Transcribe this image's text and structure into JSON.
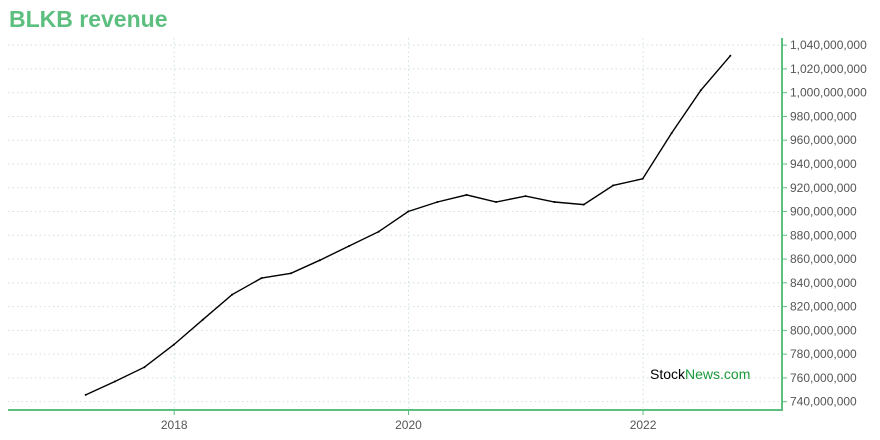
{
  "title": "BLKB revenue",
  "watermark": {
    "part1": "Stock",
    "part2": "News.com"
  },
  "colors": {
    "accent": "#5cbf7f",
    "line": "#000000",
    "grid": "#cfe3d6"
  },
  "chart_data": {
    "type": "line",
    "title": "BLKB revenue",
    "xlabel": "",
    "ylabel": "",
    "grid": true,
    "y_axis_position": "right",
    "x_ticks": [
      "2018",
      "2020",
      "2022"
    ],
    "y_ticks": [
      "740,000,000",
      "760,000,000",
      "780,000,000",
      "800,000,000",
      "820,000,000",
      "840,000,000",
      "860,000,000",
      "880,000,000",
      "900,000,000",
      "920,000,000",
      "940,000,000",
      "960,000,000",
      "980,000,000",
      "1,000,000,000",
      "1,020,000,000",
      "1,040,000,000"
    ],
    "ylim": [
      733000000,
      1046000000
    ],
    "xlim": [
      "2016-08-01",
      "2023-03-10"
    ],
    "series": [
      {
        "name": "",
        "x": [
          "2017-03-31",
          "2017-06-30",
          "2017-09-30",
          "2017-12-31",
          "2018-03-31",
          "2018-06-30",
          "2018-09-30",
          "2018-12-31",
          "2019-03-31",
          "2019-06-30",
          "2019-09-30",
          "2019-12-31",
          "2020-03-31",
          "2020-06-30",
          "2020-09-30",
          "2020-12-31",
          "2021-03-31",
          "2021-06-30",
          "2021-09-30",
          "2021-12-31",
          "2022-03-31",
          "2022-06-30",
          "2022-09-30"
        ],
        "values": [
          745700000,
          757000000,
          769000000,
          788000000,
          809000000,
          830000000,
          844000000,
          848000000,
          859000000,
          871000000,
          883000000,
          900000000,
          908000000,
          914000000,
          908000000,
          913000000,
          908000000,
          905800000,
          922000000,
          927500000,
          966000000,
          1002000000,
          1031000000
        ]
      }
    ]
  }
}
